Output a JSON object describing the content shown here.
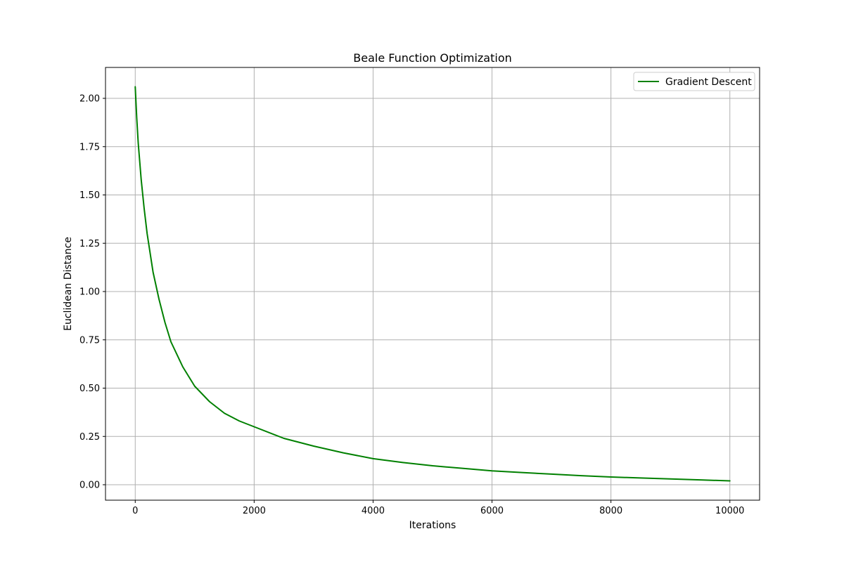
{
  "chart_data": {
    "type": "line",
    "title": "Beale Function Optimization",
    "xlabel": "Iterations",
    "ylabel": "Euclidean Distance",
    "xlim": [
      -500,
      10500
    ],
    "ylim": [
      -0.08,
      2.16
    ],
    "xticks": [
      0,
      2000,
      4000,
      6000,
      8000,
      10000
    ],
    "xtick_labels": [
      "0",
      "2000",
      "4000",
      "6000",
      "8000",
      "10000"
    ],
    "yticks": [
      0.0,
      0.25,
      0.5,
      0.75,
      1.0,
      1.25,
      1.5,
      1.75,
      2.0
    ],
    "ytick_labels": [
      "0.00",
      "0.25",
      "0.50",
      "0.75",
      "1.00",
      "1.25",
      "1.50",
      "1.75",
      "2.00"
    ],
    "grid": true,
    "legend_position": "top-right",
    "series": [
      {
        "name": "Gradient Descent",
        "color": "#008000",
        "x": [
          0,
          25,
          50,
          100,
          150,
          200,
          300,
          400,
          500,
          600,
          800,
          1000,
          1250,
          1500,
          1750,
          2000,
          2500,
          3000,
          3500,
          4000,
          4500,
          5000,
          5500,
          6000,
          6500,
          7000,
          7500,
          8000,
          8500,
          9000,
          9500,
          10000
        ],
        "y": [
          2.06,
          1.9,
          1.77,
          1.58,
          1.43,
          1.3,
          1.1,
          0.96,
          0.84,
          0.74,
          0.61,
          0.51,
          0.43,
          0.37,
          0.33,
          0.3,
          0.24,
          0.2,
          0.165,
          0.135,
          0.115,
          0.098,
          0.085,
          0.072,
          0.063,
          0.055,
          0.047,
          0.04,
          0.035,
          0.03,
          0.025,
          0.02
        ]
      }
    ]
  }
}
